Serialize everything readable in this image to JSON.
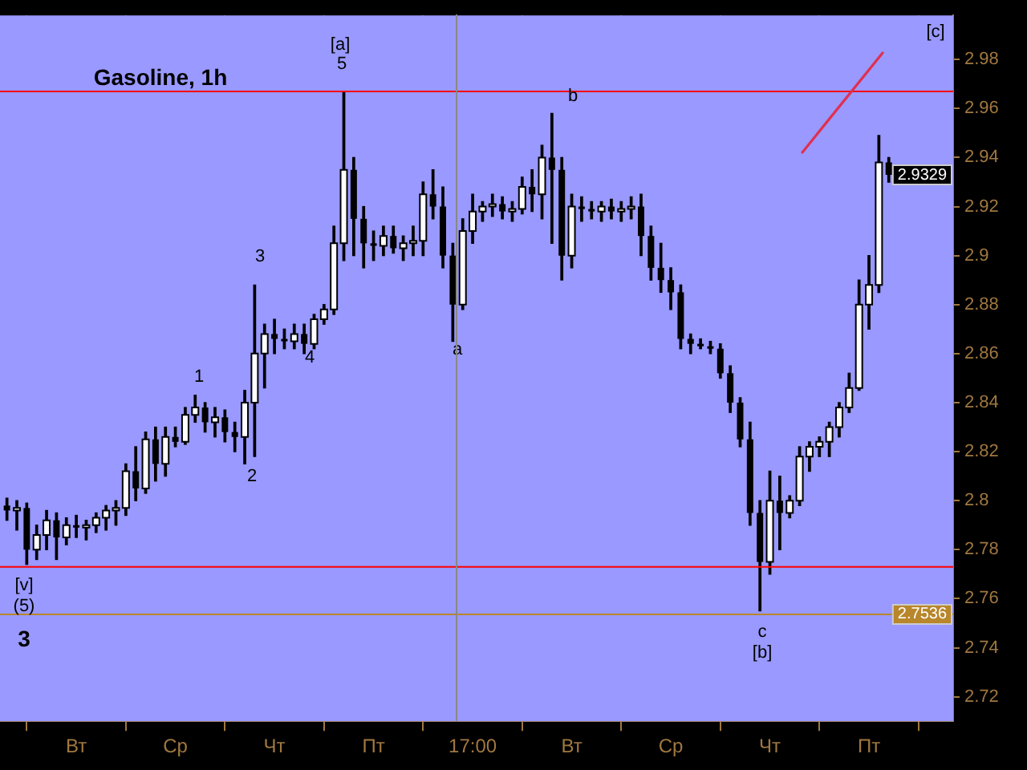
{
  "chart_data": {
    "type": "candlestick",
    "title": "Gasoline, 1h",
    "categories": [
      null,
      null,
      null,
      null,
      null,
      null,
      null,
      "Вт",
      null,
      null,
      null,
      null,
      null,
      null,
      null,
      null,
      null,
      "Ср",
      null,
      null,
      null,
      null,
      null,
      null,
      null,
      null,
      null,
      "Чт",
      null,
      null,
      null,
      null,
      null,
      null,
      null,
      null,
      null,
      "Пт",
      null,
      null,
      null,
      null,
      null,
      null,
      null,
      null,
      null,
      "17:00",
      null,
      null,
      null,
      null,
      null,
      null,
      null,
      null,
      null,
      "Вт",
      null,
      null,
      null,
      null,
      null,
      null,
      null,
      null,
      null,
      "Ср",
      null,
      null,
      null,
      null,
      null,
      null,
      null,
      null,
      null,
      "Чт",
      null,
      null,
      null,
      null,
      null,
      null,
      null,
      null,
      null,
      "Пт",
      null,
      null
    ],
    "ylim": [
      2.71,
      2.998
    ],
    "yticks": [
      2.72,
      2.74,
      2.76,
      2.78,
      2.8,
      2.82,
      2.84,
      2.86,
      2.88,
      2.9,
      2.92,
      2.94,
      2.96,
      2.98
    ],
    "grid": true,
    "legend": false,
    "ohlc": [
      [
        2.798,
        2.801,
        2.792,
        2.796
      ],
      [
        2.796,
        2.8,
        2.788,
        2.797
      ],
      [
        2.797,
        2.799,
        2.774,
        2.78
      ],
      [
        2.78,
        2.79,
        2.776,
        2.786
      ],
      [
        2.786,
        2.796,
        2.78,
        2.792
      ],
      [
        2.792,
        2.795,
        2.776,
        2.785
      ],
      [
        2.785,
        2.793,
        2.782,
        2.79
      ],
      [
        2.79,
        2.794,
        2.785,
        2.789
      ],
      [
        2.789,
        2.792,
        2.784,
        2.79
      ],
      [
        2.79,
        2.795,
        2.787,
        2.793
      ],
      [
        2.793,
        2.798,
        2.788,
        2.796
      ],
      [
        2.796,
        2.8,
        2.79,
        2.797
      ],
      [
        2.797,
        2.815,
        2.794,
        2.812
      ],
      [
        2.812,
        2.822,
        2.8,
        2.805
      ],
      [
        2.805,
        2.828,
        2.803,
        2.825
      ],
      [
        2.825,
        2.83,
        2.808,
        2.815
      ],
      [
        2.815,
        2.83,
        2.81,
        2.826
      ],
      [
        2.826,
        2.83,
        2.822,
        2.824
      ],
      [
        2.824,
        2.838,
        2.823,
        2.835
      ],
      [
        2.835,
        2.843,
        2.832,
        2.838
      ],
      [
        2.838,
        2.84,
        2.828,
        2.832
      ],
      [
        2.832,
        2.838,
        2.826,
        2.834
      ],
      [
        2.834,
        2.837,
        2.824,
        2.828
      ],
      [
        2.828,
        2.832,
        2.82,
        2.826
      ],
      [
        2.826,
        2.845,
        2.815,
        2.84
      ],
      [
        2.84,
        2.888,
        2.818,
        2.86
      ],
      [
        2.86,
        2.872,
        2.846,
        2.868
      ],
      [
        2.868,
        2.874,
        2.86,
        2.866
      ],
      [
        2.866,
        2.87,
        2.862,
        2.865
      ],
      [
        2.865,
        2.872,
        2.862,
        2.868
      ],
      [
        2.868,
        2.872,
        2.86,
        2.864
      ],
      [
        2.864,
        2.876,
        2.862,
        2.874
      ],
      [
        2.874,
        2.88,
        2.872,
        2.878
      ],
      [
        2.878,
        2.912,
        2.876,
        2.905
      ],
      [
        2.905,
        2.967,
        2.898,
        2.935
      ],
      [
        2.935,
        2.94,
        2.9,
        2.915
      ],
      [
        2.915,
        2.92,
        2.895,
        2.905
      ],
      [
        2.905,
        2.91,
        2.898,
        2.904
      ],
      [
        2.904,
        2.912,
        2.9,
        2.908
      ],
      [
        2.908,
        2.912,
        2.901,
        2.903
      ],
      [
        2.903,
        2.908,
        2.898,
        2.905
      ],
      [
        2.905,
        2.912,
        2.9,
        2.906
      ],
      [
        2.906,
        2.93,
        2.9,
        2.925
      ],
      [
        2.925,
        2.935,
        2.915,
        2.92
      ],
      [
        2.92,
        2.928,
        2.895,
        2.9
      ],
      [
        2.9,
        2.905,
        2.865,
        2.88
      ],
      [
        2.88,
        2.915,
        2.878,
        2.91
      ],
      [
        2.91,
        2.925,
        2.905,
        2.918
      ],
      [
        2.918,
        2.922,
        2.914,
        2.92
      ],
      [
        2.92,
        2.925,
        2.916,
        2.921
      ],
      [
        2.921,
        2.924,
        2.915,
        2.918
      ],
      [
        2.918,
        2.922,
        2.914,
        2.919
      ],
      [
        2.919,
        2.932,
        2.917,
        2.928
      ],
      [
        2.928,
        2.935,
        2.918,
        2.925
      ],
      [
        2.925,
        2.945,
        2.915,
        2.94
      ],
      [
        2.94,
        2.958,
        2.905,
        2.935
      ],
      [
        2.935,
        2.94,
        2.89,
        2.9
      ],
      [
        2.9,
        2.925,
        2.895,
        2.92
      ],
      [
        2.92,
        2.924,
        2.914,
        2.919
      ],
      [
        2.919,
        2.922,
        2.915,
        2.918
      ],
      [
        2.918,
        2.922,
        2.914,
        2.92
      ],
      [
        2.92,
        2.923,
        2.915,
        2.918
      ],
      [
        2.918,
        2.922,
        2.914,
        2.919
      ],
      [
        2.919,
        2.924,
        2.915,
        2.92
      ],
      [
        2.92,
        2.925,
        2.9,
        2.908
      ],
      [
        2.908,
        2.912,
        2.89,
        2.895
      ],
      [
        2.895,
        2.905,
        2.885,
        2.89
      ],
      [
        2.89,
        2.895,
        2.878,
        2.885
      ],
      [
        2.885,
        2.888,
        2.862,
        2.866
      ],
      [
        2.866,
        2.868,
        2.86,
        2.864
      ],
      [
        2.864,
        2.866,
        2.862,
        2.863
      ],
      [
        2.863,
        2.865,
        2.86,
        2.862
      ],
      [
        2.862,
        2.864,
        2.85,
        2.852
      ],
      [
        2.852,
        2.855,
        2.836,
        2.84
      ],
      [
        2.84,
        2.842,
        2.822,
        2.825
      ],
      [
        2.825,
        2.832,
        2.79,
        2.795
      ],
      [
        2.795,
        2.8,
        2.755,
        2.775
      ],
      [
        2.775,
        2.812,
        2.77,
        2.8
      ],
      [
        2.8,
        2.81,
        2.78,
        2.795
      ],
      [
        2.795,
        2.802,
        2.793,
        2.8
      ],
      [
        2.8,
        2.822,
        2.798,
        2.818
      ],
      [
        2.818,
        2.824,
        2.812,
        2.822
      ],
      [
        2.822,
        2.826,
        2.818,
        2.824
      ],
      [
        2.824,
        2.832,
        2.818,
        2.83
      ],
      [
        2.83,
        2.84,
        2.826,
        2.838
      ],
      [
        2.838,
        2.852,
        2.836,
        2.846
      ],
      [
        2.846,
        2.89,
        2.845,
        2.88
      ],
      [
        2.88,
        2.9,
        2.87,
        2.888
      ],
      [
        2.888,
        2.949,
        2.885,
        2.938
      ],
      [
        2.938,
        2.94,
        2.93,
        2.9329
      ]
    ],
    "ref_lines": [
      {
        "axis": "y",
        "value": 2.967,
        "color": "#ff0000"
      },
      {
        "axis": "y",
        "value": 2.773,
        "color": "#ff0000"
      },
      {
        "axis": "y",
        "value": 2.7536,
        "label": "2.7536",
        "color": "#b8862b"
      }
    ],
    "annotations": [
      "[v]",
      "(5)",
      "3",
      "1",
      "2",
      "3",
      "4",
      "[a]",
      "5",
      "a",
      "b",
      "c",
      "[b]",
      "[c]",
      {
        "text": "2.9329",
        "y": 2.9329
      }
    ]
  }
}
